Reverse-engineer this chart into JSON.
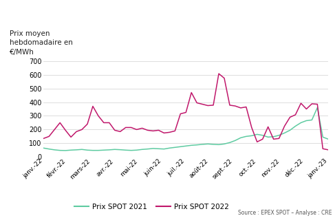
{
  "title": "Prix moyen\nhebdomadaire en\n€/MWh",
  "source": "Source : EPEX SPOT – Analyse : CRE",
  "legend_2021": "Prix SPOT 2021",
  "legend_2022": "Prix SPOT 2022",
  "color_2021": "#5ecba1",
  "color_2022": "#c0176b",
  "background_color": "#ffffff",
  "ylim": [
    0,
    700
  ],
  "yticks": [
    0,
    100,
    200,
    300,
    400,
    500,
    600,
    700
  ],
  "x_labels": [
    "janv.-22",
    "févr.-22",
    "mars-22",
    "avr.-22",
    "mai-22",
    "juin-22",
    "juil.-22",
    "août-22",
    "sept.-22",
    "oct.-22",
    "nov.-22",
    "déc.-22",
    "janv.-23"
  ],
  "spot_2021": [
    65,
    58,
    52,
    48,
    47,
    50,
    52,
    55,
    50,
    48,
    48,
    50,
    52,
    55,
    53,
    50,
    48,
    50,
    55,
    58,
    62,
    60,
    58,
    65,
    70,
    75,
    80,
    85,
    88,
    92,
    95,
    92,
    90,
    95,
    105,
    120,
    140,
    150,
    155,
    165,
    158,
    145,
    148,
    158,
    175,
    195,
    225,
    250,
    265,
    270,
    360,
    145,
    130
  ],
  "spot_2022": [
    135,
    150,
    200,
    250,
    195,
    145,
    185,
    200,
    240,
    370,
    300,
    250,
    250,
    195,
    185,
    215,
    215,
    200,
    210,
    195,
    190,
    195,
    175,
    180,
    190,
    315,
    325,
    470,
    395,
    385,
    375,
    378,
    608,
    575,
    378,
    372,
    358,
    365,
    215,
    110,
    130,
    220,
    130,
    135,
    225,
    290,
    308,
    392,
    350,
    388,
    385,
    60,
    52
  ]
}
